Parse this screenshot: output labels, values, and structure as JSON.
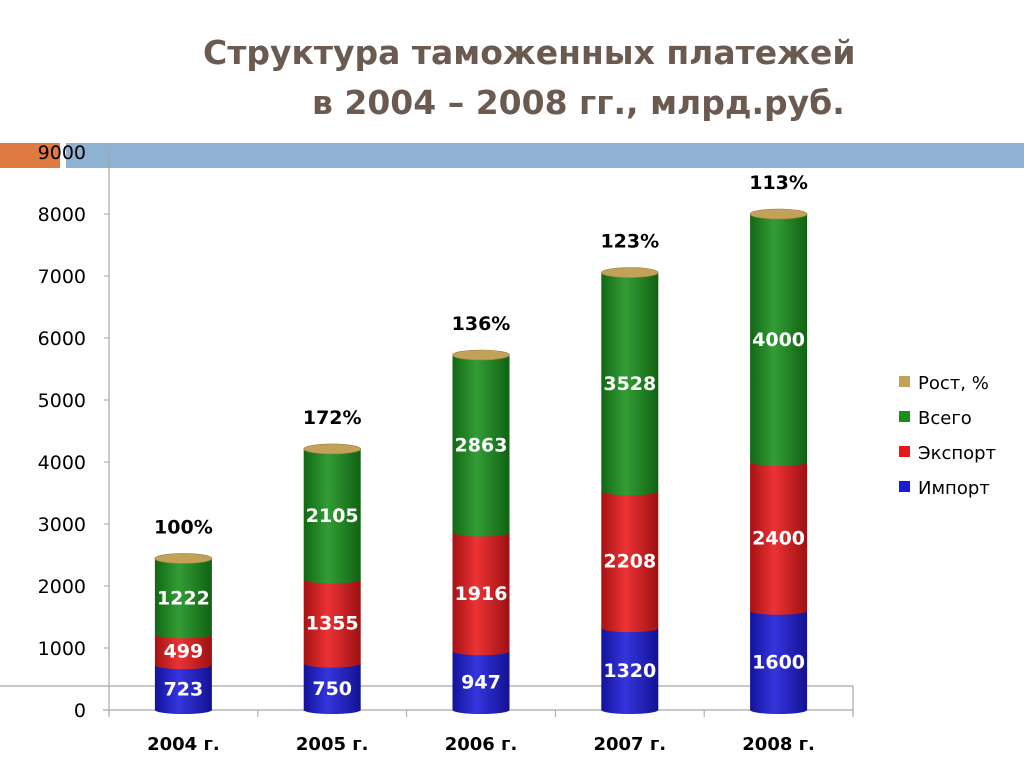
{
  "slide": {
    "title_line1": "Структура таможенных платежей",
    "title_line2": "в 2004 – 2008 гг., млрд.руб."
  },
  "colors": {
    "title": "#6b5a50",
    "import": "#1a1ad8",
    "export": "#e8171a",
    "total": "#17901a",
    "growth": "#c2a158",
    "header_band": "#8fb1d2",
    "accent": "#df7a41"
  },
  "chart_data": {
    "type": "bar",
    "stacked": true,
    "categories": [
      "2004 г.",
      "2005 г.",
      "2006 г.",
      "2007 г.",
      "2008 г."
    ],
    "series": [
      {
        "name": "Импорт",
        "values": [
          723,
          750,
          947,
          1320,
          1600
        ],
        "labels": [
          "723",
          "750",
          "947",
          "1320",
          "1600"
        ]
      },
      {
        "name": "Экспорт",
        "values": [
          499,
          1355,
          1916,
          2208,
          2400
        ],
        "labels": [
          "499",
          "1355",
          "1916",
          "2208",
          "2400"
        ]
      },
      {
        "name": "Всего",
        "values": [
          1222,
          2105,
          2863,
          3528,
          4000
        ],
        "labels": [
          "1222",
          "2105",
          "2863",
          "3528",
          "4000"
        ]
      },
      {
        "name": "Рост, %",
        "values": [
          100,
          172,
          136,
          123,
          113
        ],
        "labels": [
          "100%",
          "172%",
          "136%",
          "123%",
          "113%"
        ]
      }
    ],
    "legend": [
      "Рост, %",
      "Всего",
      "Экспорт",
      "Импорт"
    ],
    "legend_position": "right",
    "yticks": [
      "0",
      "1000",
      "2000",
      "3000",
      "4000",
      "5000",
      "6000",
      "7000",
      "8000",
      "9000"
    ],
    "ylim": [
      0,
      9000
    ],
    "grid": false
  }
}
